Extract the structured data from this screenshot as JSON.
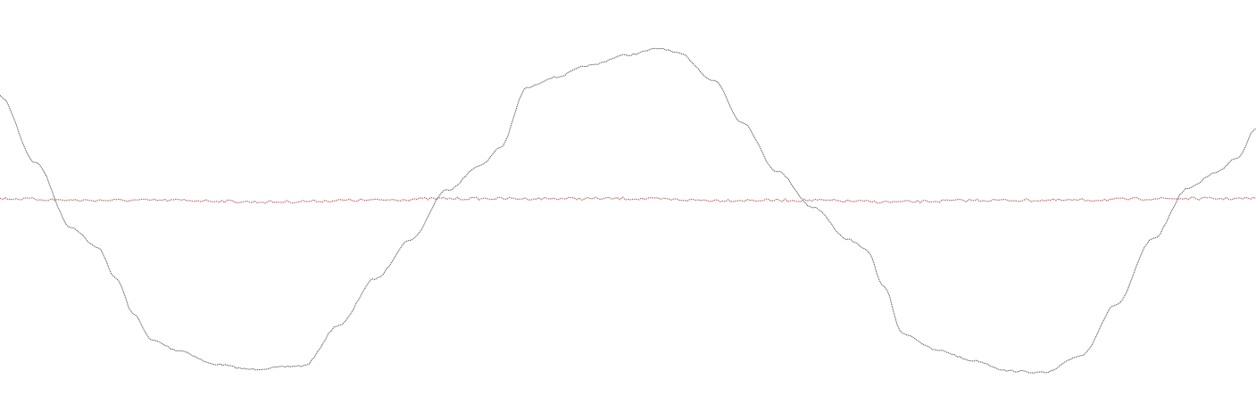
{
  "chart_data": {
    "type": "line",
    "title": "",
    "xlabel": "",
    "ylabel": "",
    "grid": false,
    "legend": "none",
    "xlim": [
      0,
      1406
    ],
    "ylim": [
      -1.1,
      1.1
    ],
    "series": [
      {
        "color": "#333333",
        "x": [
          0,
          40,
          80,
          110,
          130,
          150,
          170,
          200,
          240,
          280,
          340,
          380,
          420,
          460,
          500,
          540,
          560,
          590,
          620,
          660,
          700,
          740,
          760,
          800,
          830,
          870,
          910,
          950,
          970,
          990,
          1010,
          1050,
          1090,
          1130,
          1170,
          1210,
          1250,
          1290,
          1330,
          1360,
          1385,
          1406
        ],
        "values": [
          0.62,
          0.23,
          -0.15,
          -0.27,
          -0.45,
          -0.66,
          -0.81,
          -0.87,
          -0.95,
          -0.98,
          -0.96,
          -0.72,
          -0.45,
          -0.22,
          0.07,
          0.22,
          0.32,
          0.67,
          0.73,
          0.8,
          0.86,
          0.9,
          0.87,
          0.71,
          0.47,
          0.18,
          -0.03,
          -0.22,
          -0.28,
          -0.5,
          -0.77,
          -0.87,
          -0.93,
          -0.99,
          -1.0,
          -0.9,
          -0.6,
          -0.22,
          0.08,
          0.17,
          0.26,
          0.43
        ]
      },
      {
        "color": "#b05555",
        "x": [
          0,
          100,
          200,
          300,
          400,
          500,
          600,
          700,
          800,
          900,
          1000,
          1100,
          1200,
          1300,
          1406
        ],
        "values": [
          0.02,
          0.01,
          0.01,
          0.0,
          0.01,
          0.02,
          0.02,
          0.02,
          0.01,
          0.01,
          0.0,
          0.01,
          0.01,
          0.02,
          0.02
        ]
      }
    ]
  }
}
